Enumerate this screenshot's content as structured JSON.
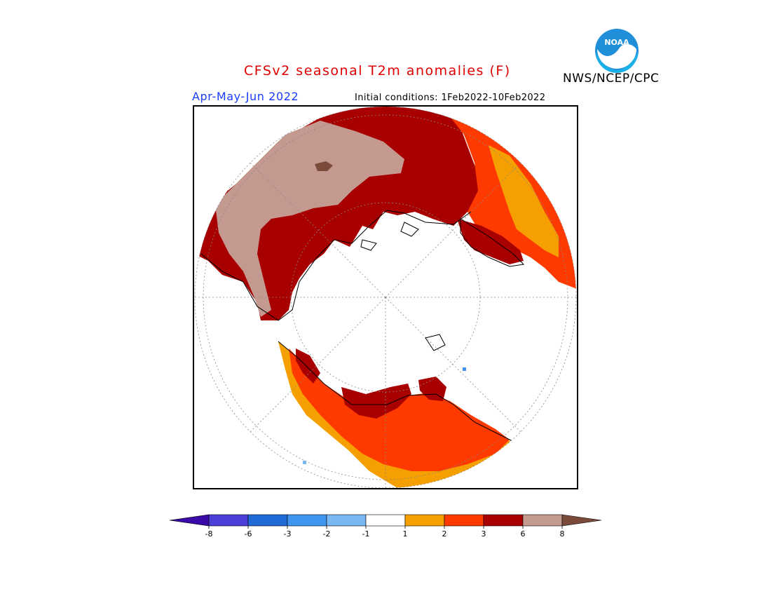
{
  "header": {
    "title": "CFSv2 seasonal T2m anomalies (F)",
    "agency": "NWS/NCEP/CPC",
    "period": "Apr-May-Jun 2022",
    "initial_conditions": "Initial conditions: 1Feb2022-10Feb2022",
    "logo_text": "NOAA"
  },
  "legend": {
    "tick_labels": [
      "-8",
      "-6",
      "-3",
      "-2",
      "-1",
      "1",
      "2",
      "3",
      "6",
      "8"
    ],
    "bins": [
      {
        "range": "< -8",
        "color": "#3a0aa8"
      },
      {
        "range": "-8 to -6",
        "color": "#4a3fd6"
      },
      {
        "range": "-6 to -3",
        "color": "#1f6ad6"
      },
      {
        "range": "-3 to -2",
        "color": "#3f95f0"
      },
      {
        "range": "-2 to -1",
        "color": "#7ab8f4"
      },
      {
        "range": "-1 to 1",
        "color": "#ffffff"
      },
      {
        "range": "1 to 2",
        "color": "#f5a000"
      },
      {
        "range": "2 to 3",
        "color": "#ff3a00"
      },
      {
        "range": "3 to 6",
        "color": "#a80000"
      },
      {
        "range": "6 to 8",
        "color": "#c49a90"
      },
      {
        "range": "> 8",
        "color": "#7a4a3a"
      }
    ]
  }
}
